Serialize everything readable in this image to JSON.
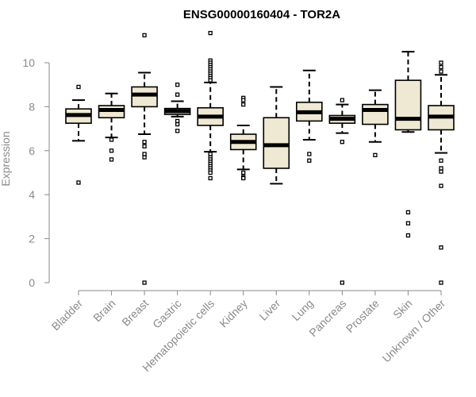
{
  "chart_data": {
    "type": "boxplot",
    "title": "ENSG00000160404 - TOR2A",
    "xlabel": "",
    "ylabel": "Expression",
    "ylim": [
      0,
      10
    ],
    "yticks": [
      0,
      2,
      4,
      6,
      8,
      10
    ],
    "box_fill": "#efe8d2",
    "categories": [
      "Bladder",
      "Brain",
      "Breast",
      "Gastric",
      "Hematopoietic cells",
      "Kidney",
      "Liver",
      "Lung",
      "Pancreas",
      "Prostate",
      "Skin",
      "Unknown / Other"
    ],
    "series": [
      {
        "name": "Bladder",
        "whisker_low": 6.45,
        "q1": 7.25,
        "median": 7.62,
        "q3": 7.9,
        "whisker_high": 8.3,
        "outliers": [
          8.9,
          4.55
        ]
      },
      {
        "name": "Brain",
        "whisker_low": 6.6,
        "q1": 7.5,
        "median": 7.85,
        "q3": 8.05,
        "whisker_high": 8.6,
        "outliers": [
          6.5,
          6.0,
          5.6
        ]
      },
      {
        "name": "Breast",
        "whisker_low": 6.75,
        "q1": 8.0,
        "median": 8.55,
        "q3": 8.9,
        "whisker_high": 9.55,
        "outliers": [
          11.25,
          6.4,
          6.2,
          5.85,
          5.7,
          0.0
        ]
      },
      {
        "name": "Gastric",
        "whisker_low": 7.55,
        "q1": 7.65,
        "median": 7.8,
        "q3": 7.92,
        "whisker_high": 8.25,
        "outliers": [
          9.0,
          8.55,
          7.35,
          7.2,
          6.9
        ]
      },
      {
        "name": "Hematopoietic cells",
        "whisker_low": 5.95,
        "q1": 7.15,
        "median": 7.55,
        "q3": 7.95,
        "whisker_high": 9.1,
        "outliers": [
          11.35,
          10.1,
          10.0,
          9.9,
          9.8,
          9.7,
          9.6,
          9.5,
          9.4,
          9.3,
          9.2,
          5.85,
          5.7,
          5.6,
          5.5,
          5.4,
          5.3,
          5.2,
          5.1,
          5.0,
          4.75
        ]
      },
      {
        "name": "Kidney",
        "whisker_low": 5.15,
        "q1": 6.05,
        "median": 6.4,
        "q3": 6.75,
        "whisker_high": 7.15,
        "outliers": [
          8.4,
          8.3,
          8.1,
          5.0,
          4.8,
          4.75
        ]
      },
      {
        "name": "Liver",
        "whisker_low": 4.5,
        "q1": 5.2,
        "median": 6.25,
        "q3": 7.5,
        "whisker_high": 8.9,
        "outliers": []
      },
      {
        "name": "Lung",
        "whisker_low": 6.5,
        "q1": 7.35,
        "median": 7.75,
        "q3": 8.2,
        "whisker_high": 9.65,
        "outliers": [
          5.85,
          5.55
        ]
      },
      {
        "name": "Pancreas",
        "whisker_low": 6.8,
        "q1": 7.25,
        "median": 7.45,
        "q3": 7.6,
        "whisker_high": 8.1,
        "outliers": [
          8.3,
          6.4,
          0.0
        ]
      },
      {
        "name": "Prostate",
        "whisker_low": 6.4,
        "q1": 7.2,
        "median": 7.85,
        "q3": 8.1,
        "whisker_high": 8.75,
        "outliers": [
          5.8
        ]
      },
      {
        "name": "Skin",
        "whisker_low": 6.85,
        "q1": 6.95,
        "median": 7.45,
        "q3": 9.2,
        "whisker_high": 10.5,
        "outliers": [
          3.2,
          2.7,
          2.15
        ]
      },
      {
        "name": "Unknown / Other",
        "whisker_low": 5.9,
        "q1": 6.95,
        "median": 7.55,
        "q3": 8.05,
        "whisker_high": 9.45,
        "outliers": [
          10.0,
          9.8,
          9.6,
          5.55,
          5.2,
          5.05,
          4.4,
          1.6,
          0.0
        ]
      }
    ]
  }
}
